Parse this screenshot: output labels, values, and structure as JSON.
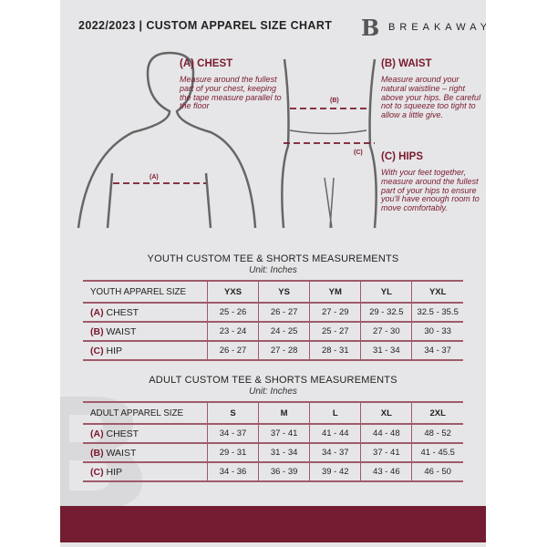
{
  "header": {
    "title": "2022/2023 | CUSTOM APPAREL SIZE CHART",
    "brand": "BREAKAWAY",
    "logo_letter": "B"
  },
  "guide": {
    "chest": {
      "title": "(A) CHEST",
      "text": "Measure around the fullest part of your chest, keeping the tape measure parallel to the floor",
      "marker": "(A)"
    },
    "waist": {
      "title": "(B) WAIST",
      "text": "Measure around your natural waistline – right above your hips. Be careful not to squeeze too tight to allow a little give.",
      "marker": "(B)"
    },
    "hips": {
      "title": "(C) HIPS",
      "text": "With your feet together, measure around the fullest part of your hips to ensure you'll have enough room to move comfortably.",
      "marker": "(C)"
    }
  },
  "youth": {
    "title": "YOUTH CUSTOM TEE & SHORTS MEASUREMENTS",
    "unit": "Unit: Inches",
    "header": "YOUTH APPAREL SIZE",
    "sizes": [
      "YXS",
      "YS",
      "YM",
      "YL",
      "YXL"
    ],
    "rows": [
      {
        "code": "(A)",
        "name": "CHEST",
        "values": [
          "25 - 26",
          "26 - 27",
          "27 - 29",
          "29 - 32.5",
          "32.5 - 35.5"
        ]
      },
      {
        "code": "(B)",
        "name": "WAIST",
        "values": [
          "23 - 24",
          "24 - 25",
          "25 - 27",
          "27 - 30",
          "30 - 33"
        ]
      },
      {
        "code": "(C)",
        "name": "HIP",
        "values": [
          "26 - 27",
          "27 - 28",
          "28 - 31",
          "31 - 34",
          "34 - 37"
        ]
      }
    ]
  },
  "adult": {
    "title": "ADULT CUSTOM TEE & SHORTS MEASUREMENTS",
    "unit": "Unit: Inches",
    "header": "ADULT APPAREL SIZE",
    "sizes": [
      "S",
      "M",
      "L",
      "XL",
      "2XL"
    ],
    "rows": [
      {
        "code": "(A)",
        "name": "CHEST",
        "values": [
          "34 - 37",
          "37 - 41",
          "41 - 44",
          "44 - 48",
          "48 - 52"
        ]
      },
      {
        "code": "(B)",
        "name": "WAIST",
        "values": [
          "29 - 31",
          "31 - 34",
          "34 - 37",
          "37 - 41",
          "41 - 45.5"
        ]
      },
      {
        "code": "(C)",
        "name": "HIP",
        "values": [
          "34 - 36",
          "36 - 39",
          "39 - 42",
          "43 - 46",
          "46 - 50"
        ]
      }
    ]
  },
  "colors": {
    "accent": "#741c31",
    "background": "#e6e6e8"
  }
}
